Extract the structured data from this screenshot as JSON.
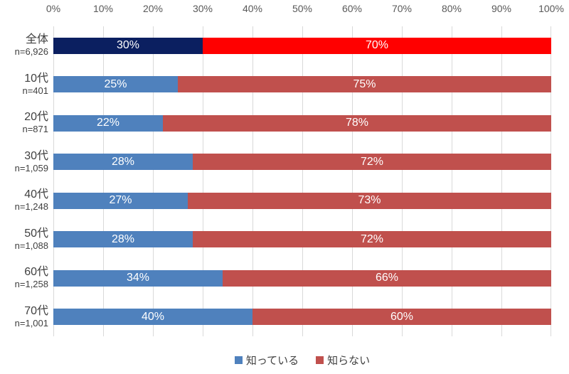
{
  "chart_data": {
    "type": "bar",
    "orientation": "horizontal-stacked",
    "title": "",
    "xlabel": "",
    "ylabel": "",
    "xlim": [
      0,
      100
    ],
    "grid": true,
    "x_ticks": [
      "0%",
      "10%",
      "20%",
      "30%",
      "40%",
      "50%",
      "60%",
      "70%",
      "80%",
      "90%",
      "100%"
    ],
    "categories": [
      "全体",
      "10代",
      "20代",
      "30代",
      "40代",
      "50代",
      "60代",
      "70代"
    ],
    "category_sublabels": [
      "n=6,926",
      "n=401",
      "n=871",
      "n=1,059",
      "n=1,248",
      "n=1,088",
      "n=1,258",
      "n=1,001"
    ],
    "series": [
      {
        "name": "知っている",
        "values": [
          30,
          25,
          22,
          28,
          27,
          28,
          34,
          40
        ],
        "color": "#4F81BD",
        "highlight_color": "#0B1F60"
      },
      {
        "name": "知らない",
        "values": [
          70,
          75,
          78,
          72,
          73,
          72,
          66,
          60
        ],
        "color": "#C0504D",
        "highlight_color": "#FF0000"
      }
    ],
    "highlight_row_index": 0,
    "value_suffix": "%",
    "data_label_color": "#FFFFFF",
    "legend_position": "bottom",
    "gridline_color": "#D9D9D9",
    "tick_label_color": "#595959",
    "category_label_color": "#3F3F3F"
  },
  "legend": {
    "items": [
      {
        "label": "知っている",
        "color": "#4F81BD"
      },
      {
        "label": "知らない",
        "color": "#C0504D"
      }
    ]
  }
}
